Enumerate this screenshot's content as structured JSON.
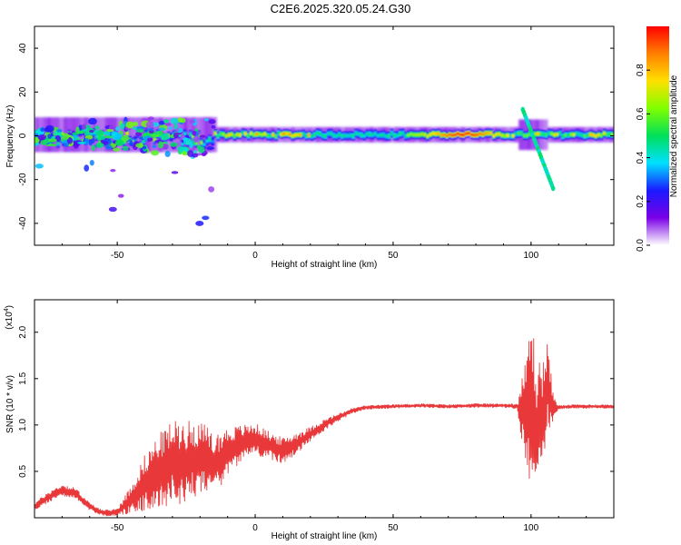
{
  "title": "C2E6.2025.320.05.24.G30",
  "colors": {
    "snr_line": "#e8383a",
    "axis": "#000000",
    "background": "#ffffff"
  },
  "chart_data": [
    {
      "type": "heatmap",
      "name": "spectrogram",
      "xlabel": "Height of straight line (km)",
      "ylabel": "Frequency (Hz)",
      "xlim": [
        -80,
        130
      ],
      "ylim": [
        -50,
        50
      ],
      "x_ticks": [
        -50,
        0,
        50,
        100
      ],
      "y_ticks": [
        -40,
        -20,
        0,
        20,
        40
      ],
      "colorbar": {
        "label": "Normalized spectral amplitude",
        "range": [
          0,
          1
        ],
        "ticks": [
          "0.0",
          "0.2",
          "0.4",
          "0.6",
          "0.8"
        ],
        "tick_values": [
          0,
          0.2,
          0.4,
          0.6,
          0.8
        ],
        "colormap": [
          "#ffffff",
          "#7a00e6",
          "#1a1aff",
          "#00e0ff",
          "#00e05a",
          "#7fff00",
          "#ffe000",
          "#ff8000",
          "#ff0000"
        ]
      },
      "features": [
        {
          "name": "main band",
          "x_range": [
            -80,
            130
          ],
          "freq_center": 0.5,
          "freq_width": 4,
          "peak_amplitude": 0.9
        },
        {
          "name": "scattered lower-height energy",
          "x_range": [
            -80,
            -15
          ],
          "freq_range": [
            -45,
            35
          ],
          "amplitude": 0.3
        },
        {
          "name": "descending branch near 100 km",
          "x_start": [
            97,
            12
          ],
          "x_end": [
            108,
            -24
          ],
          "amplitude": 0.4
        }
      ]
    },
    {
      "type": "line",
      "name": "snr",
      "xlabel": "Height of straight line (km)",
      "ylabel": "SNR (10 * v/v)",
      "y_scale_label": "(x10",
      "y_scale_exp": "4",
      "y_scale_close": ")",
      "xlim": [
        -80,
        130
      ],
      "ylim": [
        0,
        2.35
      ],
      "x_ticks": [
        -50,
        0,
        50,
        100
      ],
      "y_ticks": [
        0.5,
        1.0,
        1.5,
        2.0
      ],
      "y_tick_labels": [
        "0.5",
        "1.0",
        "1.5",
        "2.0"
      ],
      "series": [
        {
          "name": "SNR",
          "x": [
            -80,
            -75,
            -70,
            -65,
            -60,
            -55,
            -50,
            -45,
            -40,
            -35,
            -30,
            -25,
            -20,
            -15,
            -10,
            -5,
            0,
            5,
            10,
            15,
            20,
            25,
            30,
            35,
            40,
            50,
            60,
            70,
            80,
            90,
            95,
            98,
            100,
            102,
            104,
            106,
            108,
            110,
            115,
            120,
            125,
            130
          ],
          "y": [
            0.12,
            0.22,
            0.3,
            0.26,
            0.12,
            0.05,
            0.06,
            0.2,
            0.38,
            0.5,
            0.6,
            0.6,
            0.65,
            0.55,
            0.72,
            0.8,
            0.85,
            0.78,
            0.72,
            0.8,
            0.9,
            1.0,
            1.08,
            1.15,
            1.19,
            1.2,
            1.21,
            1.2,
            1.21,
            1.21,
            1.2,
            1.1,
            1.3,
            0.9,
            1.1,
            1.4,
            1.2,
            1.19,
            1.2,
            1.2,
            1.2,
            1.2
          ],
          "noise_amplitude": [
            0.04,
            0.06,
            0.06,
            0.06,
            0.04,
            0.03,
            0.04,
            0.15,
            0.3,
            0.4,
            0.45,
            0.45,
            0.4,
            0.35,
            0.25,
            0.2,
            0.17,
            0.15,
            0.14,
            0.12,
            0.08,
            0.06,
            0.04,
            0.03,
            0.02,
            0.02,
            0.02,
            0.02,
            0.02,
            0.02,
            0.03,
            0.6,
            0.95,
            0.8,
            0.6,
            0.5,
            0.15,
            0.02,
            0.02,
            0.02,
            0.02,
            0.02
          ]
        }
      ]
    }
  ]
}
